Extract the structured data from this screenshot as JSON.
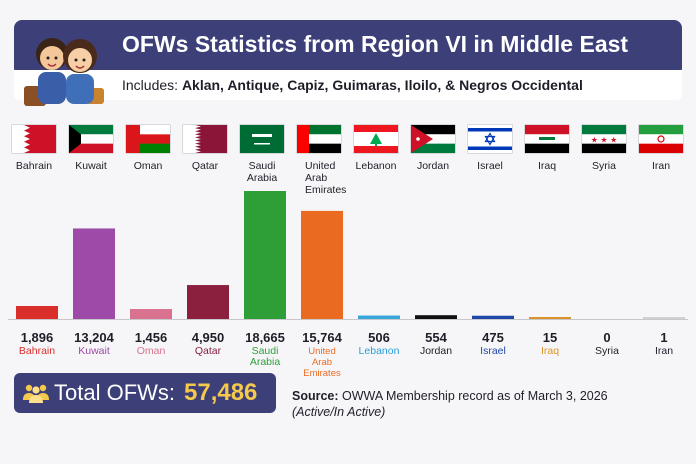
{
  "header": {
    "title": "OFWs Statistics from Region VI in Middle East",
    "subtitle_prefix": "Includes:",
    "subtitle_provinces": "Aklan, Antique, Capiz, Guimaras, Iloilo, & Negros Occidental"
  },
  "total": {
    "label": "Total OFWs:",
    "value": "57,486",
    "value_color": "#f4c94c"
  },
  "source": {
    "label": "Source:",
    "text": "OWWA Membership record as of March 3, 2026",
    "note": "(Active/In Active)"
  },
  "colors": {
    "header_bg": "#3c3f78"
  },
  "countries": [
    {
      "name": "Bahrain",
      "flag_icon": "bahrain-flag-icon"
    },
    {
      "name": "Kuwait",
      "flag_icon": "kuwait-flag-icon"
    },
    {
      "name": "Oman",
      "flag_icon": "oman-flag-icon"
    },
    {
      "name": "Qatar",
      "flag_icon": "qatar-flag-icon"
    },
    {
      "name": "Saudi\nArabia",
      "flag_icon": "saudi-arabia-flag-icon"
    },
    {
      "name": "United\nArab\nEmirates",
      "flag_icon": "uae-flag-icon"
    },
    {
      "name": "Lebanon",
      "flag_icon": "lebanon-flag-icon"
    },
    {
      "name": "Jordan",
      "flag_icon": "jordan-flag-icon"
    },
    {
      "name": "Israel",
      "flag_icon": "israel-flag-icon"
    },
    {
      "name": "Iraq",
      "flag_icon": "iraq-flag-icon"
    },
    {
      "name": "Syria",
      "flag_icon": "syria-flag-icon"
    },
    {
      "name": "Iran",
      "flag_icon": "iran-flag-icon"
    }
  ],
  "chart_data": {
    "type": "bar",
    "categories": [
      "Bahrain",
      "Kuwait",
      "Oman",
      "Qatar",
      "Saudi Arabia",
      "United Arab Emirates",
      "Lebanon",
      "Jordan",
      "Israel",
      "Iraq",
      "Syria",
      "Iran"
    ],
    "value_labels": [
      "1,896",
      "13,204",
      "1,456",
      "4,950",
      "18,665",
      "15,764",
      "506",
      "554",
      "475",
      "15",
      "0",
      "1"
    ],
    "values": [
      1896,
      13204,
      1456,
      4950,
      18665,
      15764,
      506,
      554,
      475,
      15,
      0,
      1
    ],
    "colors": [
      "#d92e2a",
      "#9e4aa8",
      "#d9728e",
      "#8a1f3e",
      "#2e9e37",
      "#eb6a22",
      "#3aa7dc",
      "#111111",
      "#1f47a8",
      "#d9932a",
      "#7a7a7a",
      "#d0d0d0"
    ],
    "label_colors": [
      "#d92e2a",
      "#9e4aa8",
      "#d9728e",
      "#8a1f3e",
      "#2e9e37",
      "#eb6a22",
      "#2a9fd6",
      "#1e1e28",
      "#1f47a8",
      "#d9932a",
      "#1e1e28",
      "#1e1e28"
    ],
    "label_lines": [
      [
        "Bahrain"
      ],
      [
        "Kuwait"
      ],
      [
        "Oman"
      ],
      [
        "Qatar"
      ],
      [
        "Saudi",
        "Arabia"
      ],
      [
        "United",
        "Arab",
        "Emirates"
      ],
      [
        "Lebanon"
      ],
      [
        "Jordan"
      ],
      [
        "Israel"
      ],
      [
        "Iraq"
      ],
      [
        "Syria"
      ],
      [
        "Iran"
      ]
    ],
    "ylim": [
      0,
      18665
    ],
    "title": "OFWs Statistics from Region VI in Middle East",
    "xlabel": "",
    "ylabel": ""
  }
}
